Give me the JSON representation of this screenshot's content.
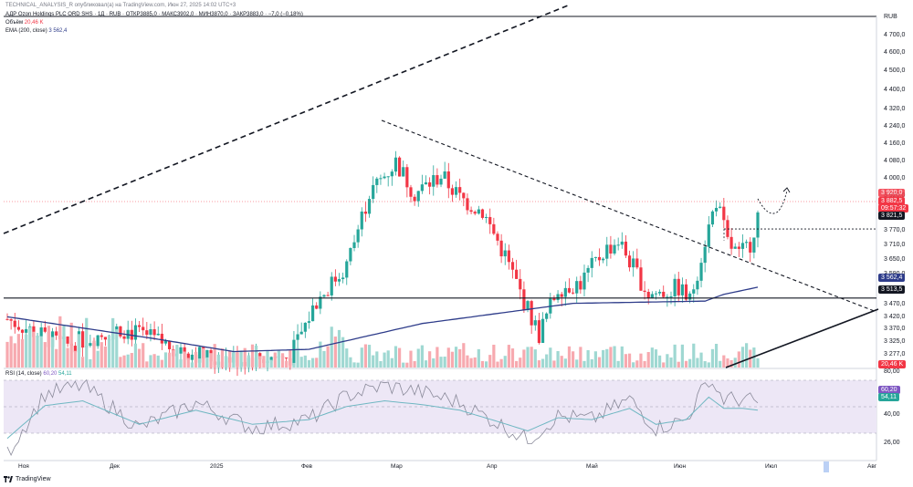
{
  "header": {
    "publish_line": "TECHNICAL_ANALYSIS_R опубликовал(а) на TradingView.com, Июн 27, 2025 14:02 UTC+3",
    "symbol_line": "АДР Ozon Holdings PLC ORD SHS · 1Д · RUB · ОТКР3885,0 · МАКС3902,0 · МИН3870,0 · ЗАКР3883,0 · −7,0 (−0,18%)",
    "volume_label": "Объём",
    "volume_value": "20,46 K",
    "ema_label": "EMA (200, close)",
    "ema_value": "3 562,4",
    "rsi_label": "RSI (14, close)",
    "rsi_value": "60,20",
    "rsi_ma_value": "54,11"
  },
  "currency": "RUB",
  "price_axis": [
    "4 700,0",
    "4 600,0",
    "4 500,0",
    "4 400,0",
    "4 320,0",
    "4 240,0",
    "4 160,0",
    "4 080,0",
    "4 000,0",
    "3 920,0",
    "3 850,0",
    "3 770,0",
    "3 710,0",
    "3 650,0",
    "3 590,0",
    "3 530,0",
    "3 470,0",
    "3 420,0",
    "3 370,0",
    "3 325,0",
    "3 277,0"
  ],
  "price_badges": {
    "hi": "3 920,0",
    "last": "3 882,5",
    "countdown": "09:57:32",
    "alert": "3 821,5",
    "ema": "3 562,4",
    "support": "3 513,5",
    "volume": "20,46 K"
  },
  "rsi_axis": [
    "80,00",
    "40,00",
    "26,00"
  ],
  "time_axis": [
    "Ноя",
    "Дек",
    "2025",
    "Фев",
    "Мар",
    "Апр",
    "Май",
    "Июн",
    "Июл",
    "Авг"
  ],
  "footer": {
    "brand": "TradingView"
  },
  "colors": {
    "up": "#26a69a",
    "down": "#f23645",
    "vol_up": "#9fd8d2",
    "vol_down": "#f7a9af",
    "ema": "#2e3c8a",
    "rsi": "#8a8a9a",
    "rsi_ma": "#6fb7c2",
    "rsi_band": "#ede7f6"
  },
  "chart_data": {
    "type": "candlestick",
    "ema_period": 200,
    "rsi_period": 14,
    "support_level": 3513.5,
    "alert_level": 3821.5,
    "ylim": [
      3277,
      4700
    ],
    "rsi_ylim": [
      26,
      80
    ]
  }
}
